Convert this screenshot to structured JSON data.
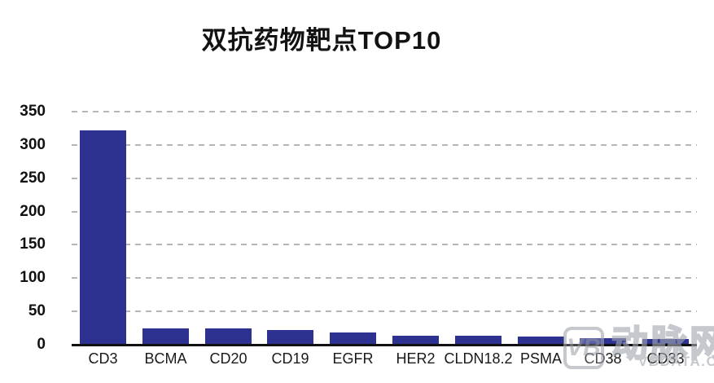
{
  "title": "双抗药物靶点TOP10",
  "watermark": {
    "logo_text": "VB",
    "brand_cn": "动脉网",
    "brand_url": "VBDATA.CN"
  },
  "colors": {
    "bar": "#2d3190",
    "gridline": "#b3b6ba",
    "axis": "#111111",
    "text": "#111111",
    "watermark": "#a2a7b0",
    "background": "#ffffff"
  },
  "chart_data": {
    "type": "bar",
    "title": "双抗药物靶点TOP10",
    "categories": [
      "CD3",
      "BCMA",
      "CD20",
      "CD19",
      "EGFR",
      "HER2",
      "CLDN18.2",
      "PSMA",
      "CD38",
      "CD33"
    ],
    "values": [
      322,
      25,
      24,
      22,
      18,
      14,
      13,
      12,
      10,
      9
    ],
    "xlabel": "",
    "ylabel": "",
    "ylim": [
      0,
      350
    ],
    "yticks": [
      0,
      50,
      100,
      150,
      200,
      250,
      300,
      350
    ],
    "grid": "horizontal-dashed",
    "legend": "none",
    "bar_color": "#2d3190"
  }
}
